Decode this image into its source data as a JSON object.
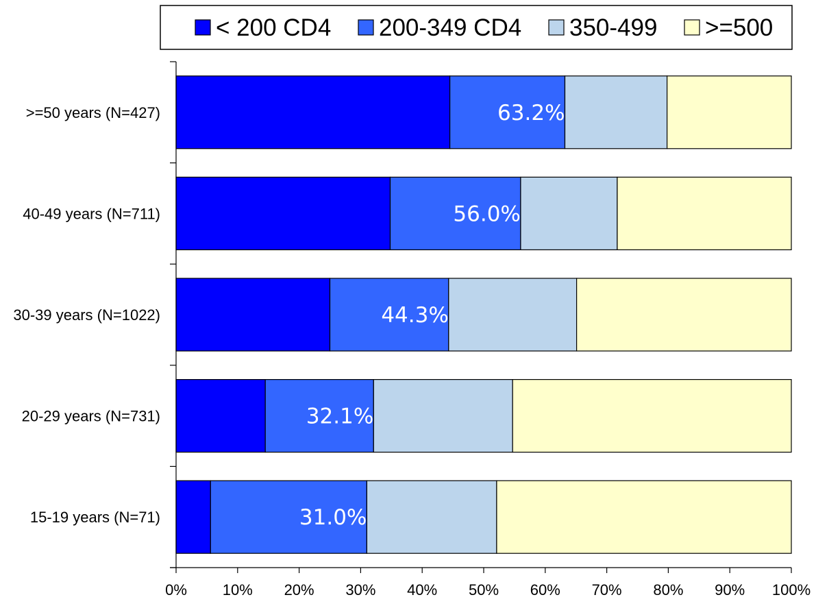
{
  "chart_data": {
    "type": "bar",
    "orientation": "horizontal",
    "stacked": "percent",
    "categories": [
      ">=50 years (N=427)",
      "40-49 years (N=711)",
      "30-39 years (N=1022)",
      "20-29 years (N=731)",
      "15-19 years (N=71)"
    ],
    "series": [
      {
        "name": "< 200 CD4",
        "color": "#0000ff",
        "values": [
          44.5,
          34.8,
          25.0,
          14.5,
          5.6
        ]
      },
      {
        "name": "200-349 CD4",
        "color": "#3366ff",
        "values": [
          18.7,
          21.2,
          19.3,
          17.6,
          25.4
        ]
      },
      {
        "name": "350-499",
        "color": "#bcd5ec",
        "values": [
          16.6,
          15.7,
          20.8,
          22.6,
          21.1
        ]
      },
      {
        "name": ">=500",
        "color": "#ffffcc",
        "values": [
          20.2,
          28.3,
          34.9,
          45.3,
          47.9
        ]
      }
    ],
    "data_labels": [
      "63.2%",
      "56.0%",
      "44.3%",
      "32.1%",
      "31.0%"
    ],
    "data_label_values": [
      63.2,
      56.0,
      44.3,
      32.1,
      31.0
    ],
    "x_ticks": [
      "0%",
      "10%",
      "20%",
      "30%",
      "40%",
      "50%",
      "60%",
      "70%",
      "80%",
      "90%",
      "100%"
    ],
    "xlim": [
      0,
      100
    ],
    "legend_position": "top",
    "grid": false,
    "title": "",
    "xlabel": "",
    "ylabel": ""
  }
}
